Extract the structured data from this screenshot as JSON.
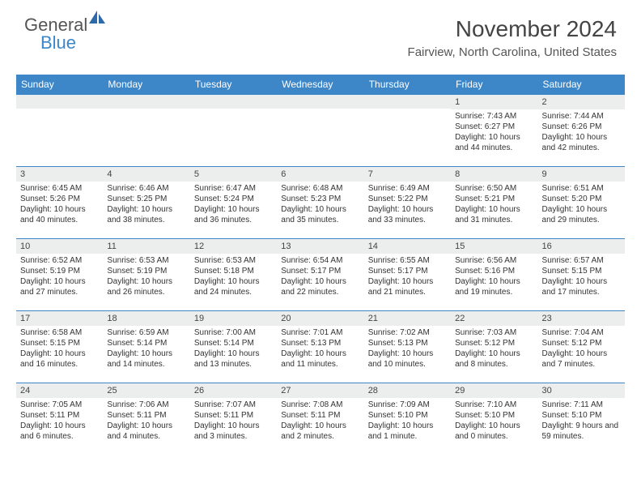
{
  "logo": {
    "text1": "General",
    "text2": "Blue",
    "icon_color": "#2f6aa8"
  },
  "title": "November 2024",
  "subtitle": "Fairview, North Carolina, United States",
  "colors": {
    "header_bg": "#3d87c9",
    "header_fg": "#ffffff",
    "daynum_bg": "#eceded",
    "border": "#3d87c9"
  },
  "day_headers": [
    "Sunday",
    "Monday",
    "Tuesday",
    "Wednesday",
    "Thursday",
    "Friday",
    "Saturday"
  ],
  "weeks": [
    [
      {
        "n": "",
        "empty": true
      },
      {
        "n": "",
        "empty": true
      },
      {
        "n": "",
        "empty": true
      },
      {
        "n": "",
        "empty": true
      },
      {
        "n": "",
        "empty": true
      },
      {
        "n": "1",
        "sr": "Sunrise: 7:43 AM",
        "ss": "Sunset: 6:27 PM",
        "dl": "Daylight: 10 hours and 44 minutes."
      },
      {
        "n": "2",
        "sr": "Sunrise: 7:44 AM",
        "ss": "Sunset: 6:26 PM",
        "dl": "Daylight: 10 hours and 42 minutes."
      }
    ],
    [
      {
        "n": "3",
        "sr": "Sunrise: 6:45 AM",
        "ss": "Sunset: 5:26 PM",
        "dl": "Daylight: 10 hours and 40 minutes."
      },
      {
        "n": "4",
        "sr": "Sunrise: 6:46 AM",
        "ss": "Sunset: 5:25 PM",
        "dl": "Daylight: 10 hours and 38 minutes."
      },
      {
        "n": "5",
        "sr": "Sunrise: 6:47 AM",
        "ss": "Sunset: 5:24 PM",
        "dl": "Daylight: 10 hours and 36 minutes."
      },
      {
        "n": "6",
        "sr": "Sunrise: 6:48 AM",
        "ss": "Sunset: 5:23 PM",
        "dl": "Daylight: 10 hours and 35 minutes."
      },
      {
        "n": "7",
        "sr": "Sunrise: 6:49 AM",
        "ss": "Sunset: 5:22 PM",
        "dl": "Daylight: 10 hours and 33 minutes."
      },
      {
        "n": "8",
        "sr": "Sunrise: 6:50 AM",
        "ss": "Sunset: 5:21 PM",
        "dl": "Daylight: 10 hours and 31 minutes."
      },
      {
        "n": "9",
        "sr": "Sunrise: 6:51 AM",
        "ss": "Sunset: 5:20 PM",
        "dl": "Daylight: 10 hours and 29 minutes."
      }
    ],
    [
      {
        "n": "10",
        "sr": "Sunrise: 6:52 AM",
        "ss": "Sunset: 5:19 PM",
        "dl": "Daylight: 10 hours and 27 minutes."
      },
      {
        "n": "11",
        "sr": "Sunrise: 6:53 AM",
        "ss": "Sunset: 5:19 PM",
        "dl": "Daylight: 10 hours and 26 minutes."
      },
      {
        "n": "12",
        "sr": "Sunrise: 6:53 AM",
        "ss": "Sunset: 5:18 PM",
        "dl": "Daylight: 10 hours and 24 minutes."
      },
      {
        "n": "13",
        "sr": "Sunrise: 6:54 AM",
        "ss": "Sunset: 5:17 PM",
        "dl": "Daylight: 10 hours and 22 minutes."
      },
      {
        "n": "14",
        "sr": "Sunrise: 6:55 AM",
        "ss": "Sunset: 5:17 PM",
        "dl": "Daylight: 10 hours and 21 minutes."
      },
      {
        "n": "15",
        "sr": "Sunrise: 6:56 AM",
        "ss": "Sunset: 5:16 PM",
        "dl": "Daylight: 10 hours and 19 minutes."
      },
      {
        "n": "16",
        "sr": "Sunrise: 6:57 AM",
        "ss": "Sunset: 5:15 PM",
        "dl": "Daylight: 10 hours and 17 minutes."
      }
    ],
    [
      {
        "n": "17",
        "sr": "Sunrise: 6:58 AM",
        "ss": "Sunset: 5:15 PM",
        "dl": "Daylight: 10 hours and 16 minutes."
      },
      {
        "n": "18",
        "sr": "Sunrise: 6:59 AM",
        "ss": "Sunset: 5:14 PM",
        "dl": "Daylight: 10 hours and 14 minutes."
      },
      {
        "n": "19",
        "sr": "Sunrise: 7:00 AM",
        "ss": "Sunset: 5:14 PM",
        "dl": "Daylight: 10 hours and 13 minutes."
      },
      {
        "n": "20",
        "sr": "Sunrise: 7:01 AM",
        "ss": "Sunset: 5:13 PM",
        "dl": "Daylight: 10 hours and 11 minutes."
      },
      {
        "n": "21",
        "sr": "Sunrise: 7:02 AM",
        "ss": "Sunset: 5:13 PM",
        "dl": "Daylight: 10 hours and 10 minutes."
      },
      {
        "n": "22",
        "sr": "Sunrise: 7:03 AM",
        "ss": "Sunset: 5:12 PM",
        "dl": "Daylight: 10 hours and 8 minutes."
      },
      {
        "n": "23",
        "sr": "Sunrise: 7:04 AM",
        "ss": "Sunset: 5:12 PM",
        "dl": "Daylight: 10 hours and 7 minutes."
      }
    ],
    [
      {
        "n": "24",
        "sr": "Sunrise: 7:05 AM",
        "ss": "Sunset: 5:11 PM",
        "dl": "Daylight: 10 hours and 6 minutes."
      },
      {
        "n": "25",
        "sr": "Sunrise: 7:06 AM",
        "ss": "Sunset: 5:11 PM",
        "dl": "Daylight: 10 hours and 4 minutes."
      },
      {
        "n": "26",
        "sr": "Sunrise: 7:07 AM",
        "ss": "Sunset: 5:11 PM",
        "dl": "Daylight: 10 hours and 3 minutes."
      },
      {
        "n": "27",
        "sr": "Sunrise: 7:08 AM",
        "ss": "Sunset: 5:11 PM",
        "dl": "Daylight: 10 hours and 2 minutes."
      },
      {
        "n": "28",
        "sr": "Sunrise: 7:09 AM",
        "ss": "Sunset: 5:10 PM",
        "dl": "Daylight: 10 hours and 1 minute."
      },
      {
        "n": "29",
        "sr": "Sunrise: 7:10 AM",
        "ss": "Sunset: 5:10 PM",
        "dl": "Daylight: 10 hours and 0 minutes."
      },
      {
        "n": "30",
        "sr": "Sunrise: 7:11 AM",
        "ss": "Sunset: 5:10 PM",
        "dl": "Daylight: 9 hours and 59 minutes."
      }
    ]
  ]
}
